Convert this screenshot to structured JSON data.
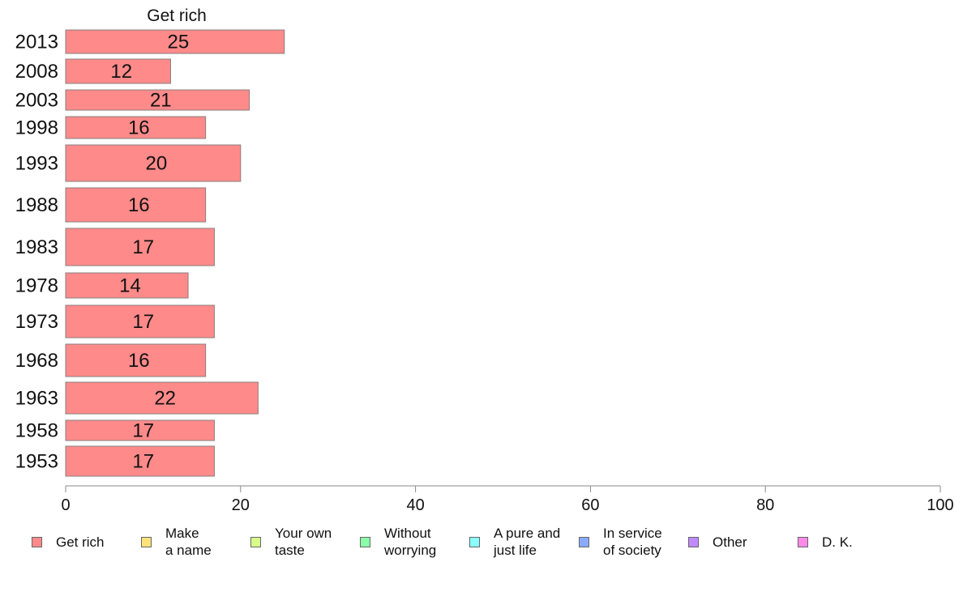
{
  "chart_data": {
    "type": "bar",
    "orientation": "horizontal",
    "column_title": "Get rich",
    "categories": [
      "2013",
      "2008",
      "2003",
      "1998",
      "1993",
      "1988",
      "1983",
      "1978",
      "1973",
      "1968",
      "1963",
      "1958",
      "1953"
    ],
    "series": [
      {
        "name": "Get rich",
        "values": [
          25,
          12,
          21,
          16,
          20,
          16,
          17,
          14,
          17,
          16,
          22,
          17,
          17
        ],
        "value_labels": [
          "25",
          "12",
          "21",
          "16",
          "20",
          "16",
          "17",
          "14",
          "17",
          "16",
          "22",
          "17",
          "17"
        ]
      }
    ],
    "xlim": [
      0,
      100
    ],
    "xticks": [
      "0",
      "20",
      "40",
      "60",
      "80",
      "100"
    ],
    "grid": false,
    "legend_position": "bottom",
    "legend": [
      {
        "label": "Get rich",
        "color": "#ff8a8a"
      },
      {
        "label": "Make\na name",
        "color": "#ffe27a"
      },
      {
        "label": "Your own\ntaste",
        "color": "#d8ff8a"
      },
      {
        "label": "Without\nworrying",
        "color": "#8affa8"
      },
      {
        "label": "A pure and\njust life",
        "color": "#8affff"
      },
      {
        "label": "In service\nof society",
        "color": "#8aaaff"
      },
      {
        "label": "Other",
        "color": "#c08aff"
      },
      {
        "label": "D. K.",
        "color": "#ff8ae8"
      }
    ]
  }
}
